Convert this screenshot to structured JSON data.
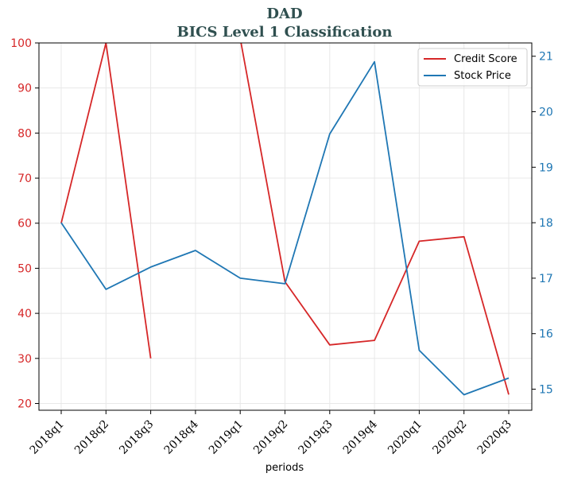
{
  "chart_data": {
    "type": "line",
    "title_line1": "DAD",
    "title_line2": "BICS Level 1 Classification",
    "xlabel": "periods",
    "categories": [
      "2018q1",
      "2018q2",
      "2018q3",
      "2018q4",
      "2019q1",
      "2019q2",
      "2019q3",
      "2019q4",
      "2020q1",
      "2020q2",
      "2020q3"
    ],
    "series": [
      {
        "name": "Credit Score",
        "axis": "left",
        "color": "#d62728",
        "values": [
          60,
          100,
          30,
          null,
          101,
          47,
          33,
          34,
          56,
          57,
          22
        ]
      },
      {
        "name": "Stock Price",
        "axis": "right",
        "color": "#1f77b4",
        "values": [
          18.0,
          16.8,
          17.2,
          17.5,
          17.0,
          16.9,
          19.6,
          20.9,
          15.7,
          14.9,
          15.2
        ]
      }
    ],
    "left_axis": {
      "ylim": [
        18.5,
        100
      ],
      "ticks": [
        20,
        30,
        40,
        50,
        60,
        70,
        80,
        90,
        100
      ],
      "color": "#d62728"
    },
    "right_axis": {
      "ylim": [
        14.62,
        21.24
      ],
      "ticks": [
        15,
        16,
        17,
        18,
        19,
        20,
        21
      ],
      "color": "#1f77b4"
    },
    "grid": true,
    "legend_position": "top-right"
  }
}
